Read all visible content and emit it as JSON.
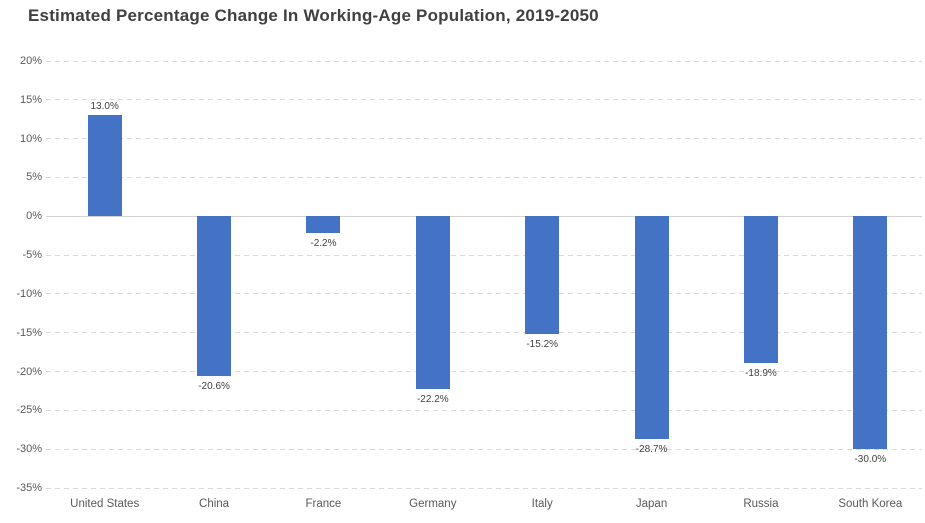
{
  "title": "Estimated Percentage Change In Working-Age Population, 2019-2050",
  "chart_data": {
    "type": "bar",
    "title": "Estimated Percentage Change In Working-Age Population, 2019-2050",
    "categories": [
      "United States",
      "China",
      "France",
      "Germany",
      "Italy",
      "Japan",
      "Russia",
      "South Korea"
    ],
    "values": [
      13.0,
      -20.6,
      -2.2,
      -22.2,
      -15.2,
      -28.7,
      -18.9,
      -30.0
    ],
    "data_labels": [
      "13.0%",
      "-20.6%",
      "-2.2%",
      "-22.2%",
      "-15.2%",
      "-28.7%",
      "-18.9%",
      "-30.0%"
    ],
    "xlabel": "",
    "ylabel": "",
    "ylim": [
      -35,
      20
    ],
    "ytick_step": 5,
    "ytick_labels": [
      "20%",
      "15%",
      "10%",
      "5%",
      "0%",
      "-5%",
      "-10%",
      "-15%",
      "-20%",
      "-25%",
      "-30%",
      "-35%"
    ],
    "grid": true,
    "gridline_style": "dashed",
    "legend_position": "none",
    "bar_color": "#4472c4",
    "gridline_color": "#d9d9d9",
    "zero_line_color": "#d2d2d2",
    "title_color": "#404040",
    "tick_label_color": "#595959",
    "data_label_color": "#404040",
    "background_color": "#ffffff"
  }
}
